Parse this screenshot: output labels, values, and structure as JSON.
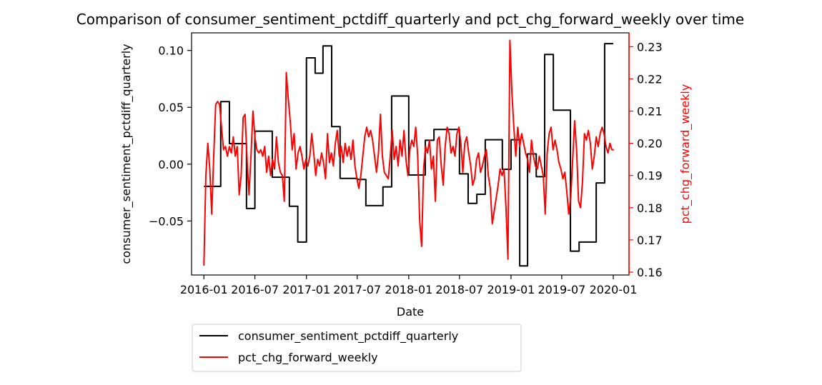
{
  "chart_data": {
    "type": "line",
    "title": "Comparison of consumer_sentiment_pctdiff_quarterly and pct_chg_forward_weekly over time",
    "xlabel": "Date",
    "ylabel_left": "consumer_sentiment_pctdiff_quarterly",
    "ylabel_right": "pct_chg_forward_weekly",
    "xlim": [
      "2015-11-18",
      "2020-02-26"
    ],
    "ylim_left": [
      -0.0975,
      0.1155
    ],
    "ylim_right": [
      0.1591,
      0.2343
    ],
    "x_ticks": [
      {
        "date": "2016-01-01",
        "label": "2016-01"
      },
      {
        "date": "2016-07-01",
        "label": "2016-07"
      },
      {
        "date": "2017-01-01",
        "label": "2017-01"
      },
      {
        "date": "2017-07-01",
        "label": "2017-07"
      },
      {
        "date": "2018-01-01",
        "label": "2018-01"
      },
      {
        "date": "2018-07-01",
        "label": "2018-07"
      },
      {
        "date": "2019-01-01",
        "label": "2019-01"
      },
      {
        "date": "2019-07-01",
        "label": "2019-07"
      },
      {
        "date": "2020-01-01",
        "label": "2020-01"
      }
    ],
    "y_ticks_left": [
      {
        "value": -0.05,
        "label": "−0.05"
      },
      {
        "value": 0.0,
        "label": "0.00"
      },
      {
        "value": 0.05,
        "label": "0.05"
      },
      {
        "value": 0.1,
        "label": "0.10"
      }
    ],
    "y_ticks_right": [
      {
        "value": 0.16,
        "label": "0.16"
      },
      {
        "value": 0.17,
        "label": "0.17"
      },
      {
        "value": 0.18,
        "label": "0.18"
      },
      {
        "value": 0.19,
        "label": "0.19"
      },
      {
        "value": 0.2,
        "label": "0.20"
      },
      {
        "value": 0.21,
        "label": "0.21"
      },
      {
        "value": 0.22,
        "label": "0.22"
      },
      {
        "value": 0.23,
        "label": "0.23"
      }
    ],
    "legend_position": "below",
    "series": [
      {
        "name": "consumer_sentiment_pctdiff_quarterly",
        "axis": "left",
        "color": "#000000",
        "step": true,
        "points": [
          [
            "2016-01-01",
            -0.0195
          ],
          [
            "2016-03-01",
            0.055
          ],
          [
            "2016-04-01",
            0.018
          ],
          [
            "2016-06-01",
            -0.039
          ],
          [
            "2016-07-01",
            0.029
          ],
          [
            "2016-09-01",
            -0.0115
          ],
          [
            "2016-11-01",
            -0.037
          ],
          [
            "2016-12-01",
            -0.0685
          ],
          [
            "2017-01-01",
            0.0935
          ],
          [
            "2017-02-01",
            0.08
          ],
          [
            "2017-03-01",
            0.104
          ],
          [
            "2017-04-01",
            0.033
          ],
          [
            "2017-05-01",
            -0.0125
          ],
          [
            "2017-07-01",
            -0.0135
          ],
          [
            "2017-08-01",
            -0.0365
          ],
          [
            "2017-10-01",
            -0.02
          ],
          [
            "2017-11-01",
            0.06
          ],
          [
            "2018-01-01",
            -0.0095
          ],
          [
            "2018-03-01",
            0.021
          ],
          [
            "2018-04-01",
            0.0305
          ],
          [
            "2018-07-01",
            -0.0085
          ],
          [
            "2018-08-01",
            -0.0345
          ],
          [
            "2018-09-01",
            -0.0265
          ],
          [
            "2018-10-01",
            0.0215
          ],
          [
            "2018-12-01",
            -0.0045
          ],
          [
            "2019-01-01",
            0.0215
          ],
          [
            "2019-02-01",
            -0.0895
          ],
          [
            "2019-03-01",
            0.009
          ],
          [
            "2019-04-01",
            -0.011
          ],
          [
            "2019-05-01",
            0.0965
          ],
          [
            "2019-06-01",
            0.0475
          ],
          [
            "2019-08-01",
            -0.0765
          ],
          [
            "2019-09-01",
            -0.0685
          ],
          [
            "2019-11-01",
            -0.0165
          ],
          [
            "2019-12-01",
            0.106
          ],
          [
            "2020-01-01",
            0.106
          ]
        ]
      },
      {
        "name": "pct_chg_forward_weekly",
        "axis": "right",
        "color": "#ff0000",
        "step": false,
        "points": [
          [
            "2016-01-01",
            0.162
          ],
          [
            "2016-01-08",
            0.19
          ],
          [
            "2016-01-15",
            0.2
          ],
          [
            "2016-01-22",
            0.192
          ],
          [
            "2016-01-29",
            0.178
          ],
          [
            "2016-02-05",
            0.196
          ],
          [
            "2016-02-12",
            0.212
          ],
          [
            "2016-02-19",
            0.213
          ],
          [
            "2016-02-26",
            0.212
          ],
          [
            "2016-03-04",
            0.205
          ],
          [
            "2016-03-11",
            0.198
          ],
          [
            "2016-03-18",
            0.199
          ],
          [
            "2016-03-25",
            0.196
          ],
          [
            "2016-04-01",
            0.199
          ],
          [
            "2016-04-08",
            0.197
          ],
          [
            "2016-04-15",
            0.202
          ],
          [
            "2016-04-22",
            0.196
          ],
          [
            "2016-04-29",
            0.199
          ],
          [
            "2016-05-06",
            0.184
          ],
          [
            "2016-05-13",
            0.19
          ],
          [
            "2016-05-20",
            0.208
          ],
          [
            "2016-05-27",
            0.209
          ],
          [
            "2016-06-03",
            0.195
          ],
          [
            "2016-06-10",
            0.184
          ],
          [
            "2016-06-17",
            0.196
          ],
          [
            "2016-06-24",
            0.21
          ],
          [
            "2016-07-01",
            0.202
          ],
          [
            "2016-07-08",
            0.198
          ],
          [
            "2016-07-15",
            0.197
          ],
          [
            "2016-07-22",
            0.198
          ],
          [
            "2016-07-29",
            0.196
          ],
          [
            "2016-08-05",
            0.199
          ],
          [
            "2016-08-12",
            0.191
          ],
          [
            "2016-08-19",
            0.196
          ],
          [
            "2016-08-26",
            0.19
          ],
          [
            "2016-09-02",
            0.195
          ],
          [
            "2016-09-09",
            0.192
          ],
          [
            "2016-09-16",
            0.202
          ],
          [
            "2016-09-23",
            0.194
          ],
          [
            "2016-09-30",
            0.191
          ],
          [
            "2016-10-07",
            0.19
          ],
          [
            "2016-10-14",
            0.182
          ],
          [
            "2016-10-21",
            0.222
          ],
          [
            "2016-10-28",
            0.214
          ],
          [
            "2016-11-04",
            0.207
          ],
          [
            "2016-11-11",
            0.198
          ],
          [
            "2016-11-18",
            0.203
          ],
          [
            "2016-11-25",
            0.192
          ],
          [
            "2016-12-02",
            0.197
          ],
          [
            "2016-12-09",
            0.199
          ],
          [
            "2016-12-16",
            0.196
          ],
          [
            "2016-12-23",
            0.192
          ],
          [
            "2016-12-30",
            0.195
          ],
          [
            "2017-01-06",
            0.193
          ],
          [
            "2017-01-13",
            0.196
          ],
          [
            "2017-01-20",
            0.203
          ],
          [
            "2017-01-27",
            0.197
          ],
          [
            "2017-02-03",
            0.19
          ],
          [
            "2017-02-10",
            0.195
          ],
          [
            "2017-02-17",
            0.193
          ],
          [
            "2017-02-24",
            0.197
          ],
          [
            "2017-03-03",
            0.194
          ],
          [
            "2017-03-10",
            0.189
          ],
          [
            "2017-03-17",
            0.203
          ],
          [
            "2017-03-24",
            0.194
          ],
          [
            "2017-03-31",
            0.197
          ],
          [
            "2017-04-07",
            0.193
          ],
          [
            "2017-04-14",
            0.2
          ],
          [
            "2017-04-21",
            0.204
          ],
          [
            "2017-04-28",
            0.196
          ],
          [
            "2017-05-05",
            0.199
          ],
          [
            "2017-05-12",
            0.194
          ],
          [
            "2017-05-19",
            0.2
          ],
          [
            "2017-05-26",
            0.196
          ],
          [
            "2017-06-02",
            0.199
          ],
          [
            "2017-06-09",
            0.195
          ],
          [
            "2017-06-16",
            0.201
          ],
          [
            "2017-06-23",
            0.193
          ],
          [
            "2017-06-30",
            0.189
          ],
          [
            "2017-07-07",
            0.186
          ],
          [
            "2017-07-14",
            0.19
          ],
          [
            "2017-07-21",
            0.196
          ],
          [
            "2017-07-28",
            0.202
          ],
          [
            "2017-08-04",
            0.205
          ],
          [
            "2017-08-11",
            0.202
          ],
          [
            "2017-08-18",
            0.204
          ],
          [
            "2017-08-25",
            0.201
          ],
          [
            "2017-09-01",
            0.196
          ],
          [
            "2017-09-08",
            0.191
          ],
          [
            "2017-09-15",
            0.197
          ],
          [
            "2017-09-22",
            0.209
          ],
          [
            "2017-09-29",
            0.196
          ],
          [
            "2017-10-06",
            0.191
          ],
          [
            "2017-10-13",
            0.19
          ],
          [
            "2017-10-20",
            0.189
          ],
          [
            "2017-10-27",
            0.196
          ],
          [
            "2017-11-03",
            0.204
          ],
          [
            "2017-11-10",
            0.195
          ],
          [
            "2017-11-17",
            0.199
          ],
          [
            "2017-11-24",
            0.193
          ],
          [
            "2017-12-01",
            0.201
          ],
          [
            "2017-12-08",
            0.196
          ],
          [
            "2017-12-15",
            0.204
          ],
          [
            "2017-12-22",
            0.195
          ],
          [
            "2017-12-29",
            0.19
          ],
          [
            "2018-01-05",
            0.198
          ],
          [
            "2018-01-12",
            0.201
          ],
          [
            "2018-01-19",
            0.199
          ],
          [
            "2018-01-26",
            0.205
          ],
          [
            "2018-02-02",
            0.196
          ],
          [
            "2018-02-09",
            0.176
          ],
          [
            "2018-02-16",
            0.168
          ],
          [
            "2018-02-23",
            0.192
          ],
          [
            "2018-03-02",
            0.199
          ],
          [
            "2018-03-09",
            0.197
          ],
          [
            "2018-03-16",
            0.201
          ],
          [
            "2018-03-23",
            0.192
          ],
          [
            "2018-03-30",
            0.196
          ],
          [
            "2018-04-06",
            0.182
          ],
          [
            "2018-04-13",
            0.201
          ],
          [
            "2018-04-20",
            0.202
          ],
          [
            "2018-04-27",
            0.193
          ],
          [
            "2018-05-04",
            0.187
          ],
          [
            "2018-05-11",
            0.199
          ],
          [
            "2018-05-18",
            0.205
          ],
          [
            "2018-05-25",
            0.203
          ],
          [
            "2018-06-01",
            0.197
          ],
          [
            "2018-06-08",
            0.199
          ],
          [
            "2018-06-15",
            0.196
          ],
          [
            "2018-06-22",
            0.203
          ],
          [
            "2018-06-29",
            0.205
          ],
          [
            "2018-07-06",
            0.2
          ],
          [
            "2018-07-13",
            0.191
          ],
          [
            "2018-07-20",
            0.2
          ],
          [
            "2018-07-27",
            0.202
          ],
          [
            "2018-08-03",
            0.197
          ],
          [
            "2018-08-10",
            0.193
          ],
          [
            "2018-08-17",
            0.187
          ],
          [
            "2018-08-24",
            0.189
          ],
          [
            "2018-08-31",
            0.195
          ],
          [
            "2018-09-07",
            0.197
          ],
          [
            "2018-09-14",
            0.191
          ],
          [
            "2018-09-21",
            0.193
          ],
          [
            "2018-09-28",
            0.196
          ],
          [
            "2018-10-05",
            0.198
          ],
          [
            "2018-10-12",
            0.19
          ],
          [
            "2018-10-19",
            0.186
          ],
          [
            "2018-10-26",
            0.175
          ],
          [
            "2018-11-02",
            0.179
          ],
          [
            "2018-11-09",
            0.183
          ],
          [
            "2018-11-16",
            0.187
          ],
          [
            "2018-11-23",
            0.192
          ],
          [
            "2018-11-30",
            0.19
          ],
          [
            "2018-12-07",
            0.192
          ],
          [
            "2018-12-14",
            0.18
          ],
          [
            "2018-12-21",
            0.164
          ],
          [
            "2018-12-28",
            0.232
          ],
          [
            "2019-01-04",
            0.216
          ],
          [
            "2019-01-11",
            0.205
          ],
          [
            "2019-01-18",
            0.196
          ],
          [
            "2019-01-25",
            0.205
          ],
          [
            "2019-02-01",
            0.199
          ],
          [
            "2019-02-08",
            0.203
          ],
          [
            "2019-02-15",
            0.2
          ],
          [
            "2019-02-22",
            0.197
          ],
          [
            "2019-03-01",
            0.195
          ],
          [
            "2019-03-08",
            0.191
          ],
          [
            "2019-03-15",
            0.201
          ],
          [
            "2019-03-22",
            0.196
          ],
          [
            "2019-03-29",
            0.193
          ],
          [
            "2019-04-05",
            0.192
          ],
          [
            "2019-04-12",
            0.196
          ],
          [
            "2019-04-19",
            0.193
          ],
          [
            "2019-04-26",
            0.19
          ],
          [
            "2019-05-03",
            0.178
          ],
          [
            "2019-05-10",
            0.197
          ],
          [
            "2019-05-17",
            0.203
          ],
          [
            "2019-05-24",
            0.205
          ],
          [
            "2019-05-31",
            0.198
          ],
          [
            "2019-06-07",
            0.201
          ],
          [
            "2019-06-14",
            0.198
          ],
          [
            "2019-06-21",
            0.194
          ],
          [
            "2019-06-28",
            0.192
          ],
          [
            "2019-07-05",
            0.189
          ],
          [
            "2019-07-12",
            0.191
          ],
          [
            "2019-07-19",
            0.185
          ],
          [
            "2019-07-26",
            0.178
          ],
          [
            "2019-08-02",
            0.183
          ],
          [
            "2019-08-09",
            0.195
          ],
          [
            "2019-08-16",
            0.207
          ],
          [
            "2019-08-23",
            0.198
          ],
          [
            "2019-08-30",
            0.182
          ],
          [
            "2019-09-06",
            0.18
          ],
          [
            "2019-09-13",
            0.188
          ],
          [
            "2019-09-20",
            0.203
          ],
          [
            "2019-09-27",
            0.201
          ],
          [
            "2019-10-04",
            0.204
          ],
          [
            "2019-10-11",
            0.2
          ],
          [
            "2019-10-18",
            0.192
          ],
          [
            "2019-10-25",
            0.196
          ],
          [
            "2019-11-01",
            0.202
          ],
          [
            "2019-11-08",
            0.199
          ],
          [
            "2019-11-15",
            0.203
          ],
          [
            "2019-11-22",
            0.205
          ],
          [
            "2019-11-29",
            0.203
          ],
          [
            "2019-12-06",
            0.199
          ],
          [
            "2019-12-13",
            0.197
          ],
          [
            "2019-12-20",
            0.2
          ],
          [
            "2019-12-27",
            0.198
          ],
          [
            "2020-01-03",
            0.198
          ]
        ]
      }
    ]
  }
}
